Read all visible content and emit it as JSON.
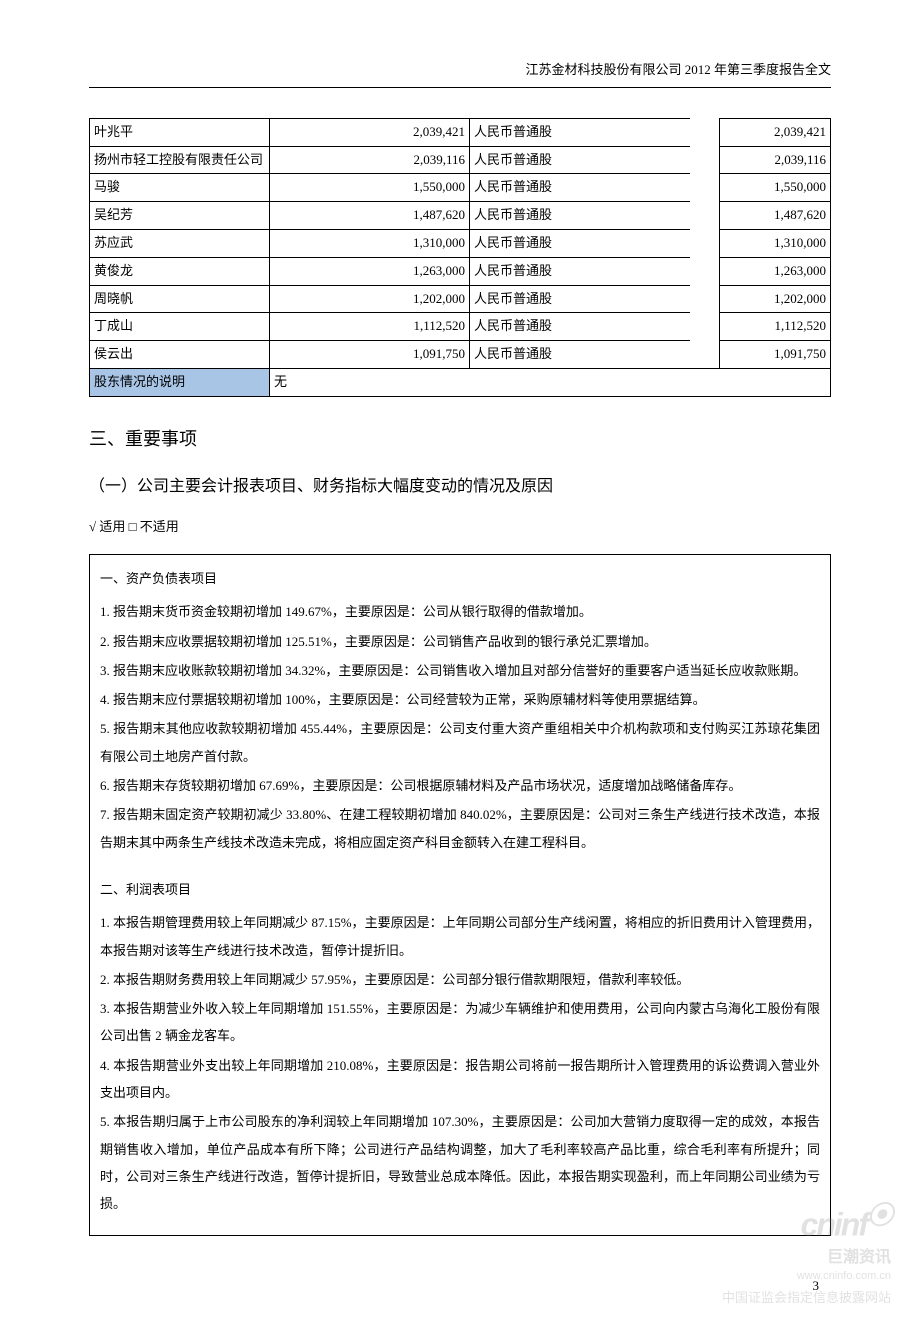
{
  "header": {
    "title": "江苏金材科技股份有限公司 2012 年第三季度报告全文"
  },
  "shareholder_table": {
    "columns": {
      "name_width": 180,
      "qty_width": 200,
      "type_width": 220,
      "gap_width": 30
    },
    "rows": [
      {
        "name": "叶兆平",
        "qty": "2,039,421",
        "type": "人民币普通股",
        "amt": "2,039,421"
      },
      {
        "name": "扬州市轻工控股有限责任公司",
        "qty": "2,039,116",
        "type": "人民币普通股",
        "amt": "2,039,116"
      },
      {
        "name": "马骏",
        "qty": "1,550,000",
        "type": "人民币普通股",
        "amt": "1,550,000"
      },
      {
        "name": "吴纪芳",
        "qty": "1,487,620",
        "type": "人民币普通股",
        "amt": "1,487,620"
      },
      {
        "name": "苏应武",
        "qty": "1,310,000",
        "type": "人民币普通股",
        "amt": "1,310,000"
      },
      {
        "name": "黄俊龙",
        "qty": "1,263,000",
        "type": "人民币普通股",
        "amt": "1,263,000"
      },
      {
        "name": "周晓帆",
        "qty": "1,202,000",
        "type": "人民币普通股",
        "amt": "1,202,000"
      },
      {
        "name": "丁成山",
        "qty": "1,112,520",
        "type": "人民币普通股",
        "amt": "1,112,520"
      },
      {
        "name": "侯云出",
        "qty": "1,091,750",
        "type": "人民币普通股",
        "amt": "1,091,750"
      }
    ],
    "footer": {
      "label": "股东情况的说明",
      "value": "无"
    },
    "colors": {
      "header_bg": "#a8c5e6",
      "border": "#000000"
    }
  },
  "section3": {
    "heading": "三、重要事项",
    "sub1": {
      "heading": "（一）公司主要会计报表项目、财务指标大幅度变动的情况及原因",
      "applicable": "√ 适用 □ 不适用",
      "group1_heading": "一、资产负债表项目",
      "group1_items": [
        "1. 报告期末货币资金较期初增加 149.67%，主要原因是：公司从银行取得的借款增加。",
        "2. 报告期末应收票据较期初增加 125.51%，主要原因是：公司销售产品收到的银行承兑汇票增加。",
        "3. 报告期末应收账款较期初增加 34.32%，主要原因是：公司销售收入增加且对部分信誉好的重要客户适当延长应收款账期。",
        "4. 报告期末应付票据较期初增加 100%，主要原因是：公司经营较为正常，采购原辅材料等使用票据结算。",
        "5. 报告期末其他应收款较期初增加 455.44%，主要原因是：公司支付重大资产重组相关中介机构款项和支付购买江苏琼花集团有限公司土地房产首付款。",
        "6. 报告期末存货较期初增加 67.69%，主要原因是：公司根据原辅材料及产品市场状况，适度增加战略储备库存。",
        "7. 报告期末固定资产较期初减少 33.80%、在建工程较期初增加 840.02%，主要原因是：公司对三条生产线进行技术改造，本报告期末其中两条生产线技术改造未完成，将相应固定资产科目金额转入在建工程科目。"
      ],
      "group2_heading": "二、利润表项目",
      "group2_items": [
        "1. 本报告期管理费用较上年同期减少 87.15%，主要原因是：上年同期公司部分生产线闲置，将相应的折旧费用计入管理费用，本报告期对该等生产线进行技术改造，暂停计提折旧。",
        "2. 本报告期财务费用较上年同期减少 57.95%，主要原因是：公司部分银行借款期限短，借款利率较低。",
        "3. 本报告期营业外收入较上年同期增加 151.55%，主要原因是：为减少车辆维护和使用费用，公司向内蒙古乌海化工股份有限公司出售 2 辆金龙客车。",
        "4. 本报告期营业外支出较上年同期增加 210.08%，主要原因是：报告期公司将前一报告期所计入管理费用的诉讼费调入营业外支出项目内。",
        "5. 本报告期归属于上市公司股东的净利润较上年同期增加 107.30%，主要原因是：公司加大营销力度取得一定的成效，本报告期销售收入增加，单位产品成本有所下降；公司进行产品结构调整，加大了毛利率较高产品比重，综合毛利率有所提升；同时，公司对三条生产线进行改造，暂停计提折旧，导致营业总成本降低。因此，本报告期实现盈利，而上年同期公司业绩为亏损。"
      ]
    }
  },
  "footer": {
    "page": "3",
    "watermark": {
      "logo": "cninf",
      "sub1": "巨潮资讯",
      "sub2": "www.cninfo.com.cn",
      "sub3": "中国证监会指定信息披露网站"
    }
  }
}
